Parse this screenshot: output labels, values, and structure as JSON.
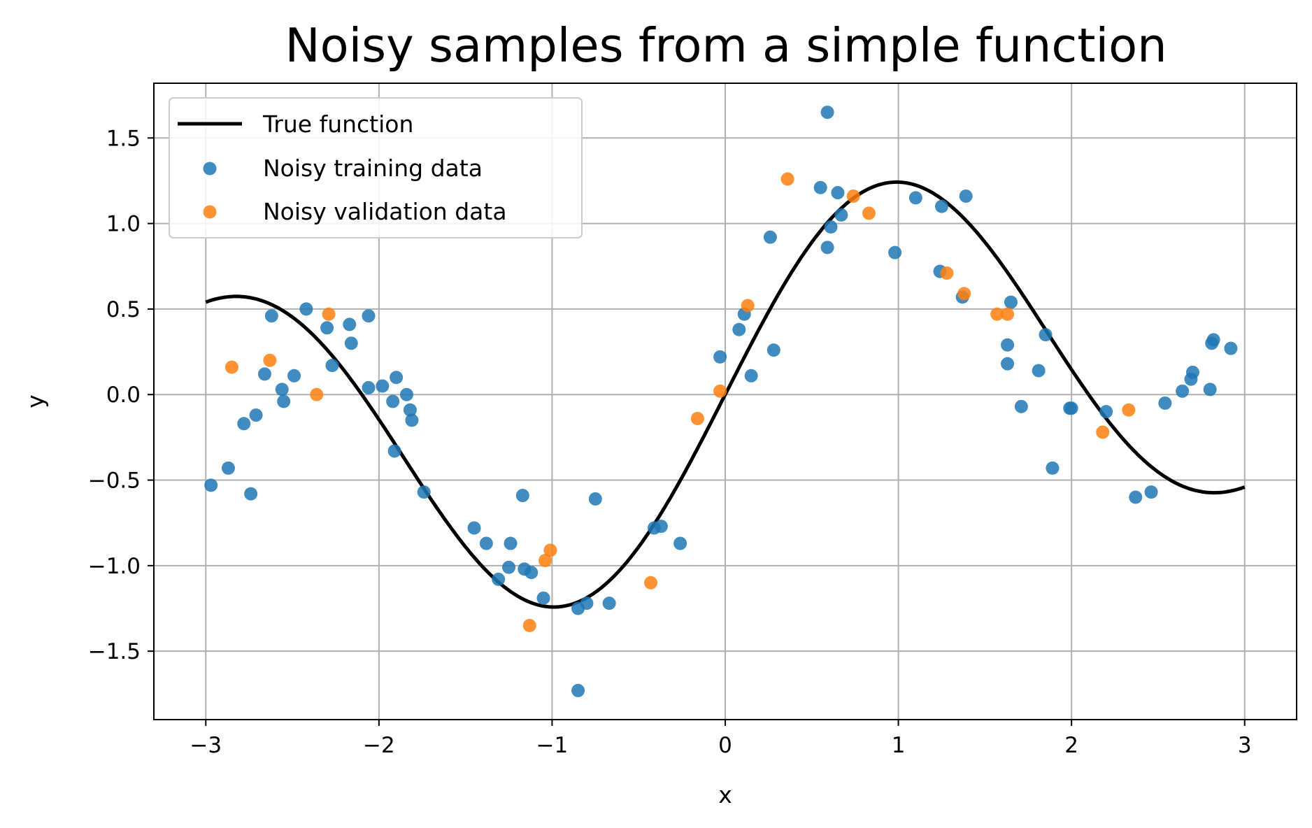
{
  "chart_data": {
    "type": "scatter",
    "title": "Noisy samples from a simple function",
    "xlabel": "x",
    "ylabel": "y",
    "xlim": [
      -3.3,
      3.3
    ],
    "ylim": [
      -1.9,
      1.82
    ],
    "grid": true,
    "legend_position": "top-left",
    "x_ticks": [
      -3,
      -2,
      -1,
      0,
      1,
      2,
      3
    ],
    "x_tick_labels": [
      "−3",
      "−2",
      "−1",
      "0",
      "1",
      "2",
      "3"
    ],
    "y_ticks": [
      -1.5,
      -1.0,
      -0.5,
      0.0,
      0.5,
      1.0,
      1.5
    ],
    "y_tick_labels": [
      "−1.5",
      "−1.0",
      "−0.5",
      "0.0",
      "0.5",
      "1.0",
      "1.5"
    ],
    "line": {
      "name": "True function",
      "color": "#000000",
      "x_range": [
        -3,
        3
      ],
      "formula": "sin(x)*1.25 approx"
    },
    "series": [
      {
        "name": "Noisy training data",
        "color": "#1f77b4",
        "points": [
          [
            -2.97,
            -0.53
          ],
          [
            -2.87,
            -0.43
          ],
          [
            -2.78,
            -0.17
          ],
          [
            -2.74,
            -0.58
          ],
          [
            -2.71,
            -0.12
          ],
          [
            -2.66,
            0.12
          ],
          [
            -2.62,
            0.46
          ],
          [
            -2.56,
            0.03
          ],
          [
            -2.55,
            -0.04
          ],
          [
            -2.49,
            0.11
          ],
          [
            -2.42,
            0.5
          ],
          [
            -2.3,
            0.39
          ],
          [
            -2.27,
            0.17
          ],
          [
            -2.17,
            0.41
          ],
          [
            -2.16,
            0.3
          ],
          [
            -2.06,
            0.46
          ],
          [
            -2.06,
            0.04
          ],
          [
            -1.98,
            0.05
          ],
          [
            -1.92,
            -0.04
          ],
          [
            -1.9,
            0.1
          ],
          [
            -1.91,
            -0.33
          ],
          [
            -1.84,
            0.0
          ],
          [
            -1.82,
            -0.09
          ],
          [
            -1.81,
            -0.15
          ],
          [
            -1.74,
            -0.57
          ],
          [
            -1.45,
            -0.78
          ],
          [
            -1.38,
            -0.87
          ],
          [
            -1.31,
            -1.08
          ],
          [
            -1.25,
            -1.01
          ],
          [
            -1.24,
            -0.87
          ],
          [
            -1.17,
            -0.59
          ],
          [
            -1.16,
            -1.02
          ],
          [
            -1.12,
            -1.04
          ],
          [
            -1.05,
            -1.19
          ],
          [
            -0.85,
            -1.73
          ],
          [
            -0.85,
            -1.25
          ],
          [
            -0.8,
            -1.22
          ],
          [
            -0.75,
            -0.61
          ],
          [
            -0.67,
            -1.22
          ],
          [
            -0.41,
            -0.78
          ],
          [
            -0.37,
            -0.77
          ],
          [
            -0.26,
            -0.87
          ],
          [
            -0.03,
            0.22
          ],
          [
            0.08,
            0.38
          ],
          [
            0.11,
            0.47
          ],
          [
            0.15,
            0.11
          ],
          [
            0.26,
            0.92
          ],
          [
            0.28,
            0.26
          ],
          [
            0.55,
            1.21
          ],
          [
            0.59,
            1.65
          ],
          [
            0.59,
            0.86
          ],
          [
            0.61,
            0.98
          ],
          [
            0.65,
            1.18
          ],
          [
            0.67,
            1.05
          ],
          [
            0.98,
            0.83
          ],
          [
            1.1,
            1.15
          ],
          [
            1.24,
            0.72
          ],
          [
            1.25,
            1.1
          ],
          [
            1.37,
            0.57
          ],
          [
            1.39,
            1.16
          ],
          [
            1.63,
            0.29
          ],
          [
            1.63,
            0.18
          ],
          [
            1.65,
            0.54
          ],
          [
            1.71,
            -0.07
          ],
          [
            1.81,
            0.14
          ],
          [
            1.85,
            0.35
          ],
          [
            1.89,
            -0.43
          ],
          [
            1.99,
            -0.08
          ],
          [
            2.0,
            -0.08
          ],
          [
            2.2,
            -0.1
          ],
          [
            2.37,
            -0.6
          ],
          [
            2.46,
            -0.57
          ],
          [
            2.54,
            -0.05
          ],
          [
            2.64,
            0.02
          ],
          [
            2.69,
            0.09
          ],
          [
            2.7,
            0.13
          ],
          [
            2.8,
            0.03
          ],
          [
            2.81,
            0.3
          ],
          [
            2.82,
            0.32
          ],
          [
            2.92,
            0.27
          ]
        ]
      },
      {
        "name": "Noisy validation data",
        "color": "#ff7f0e",
        "points": [
          [
            -2.85,
            0.16
          ],
          [
            -2.63,
            0.2
          ],
          [
            -2.36,
            0.0
          ],
          [
            -2.29,
            0.47
          ],
          [
            -1.13,
            -1.35
          ],
          [
            -1.04,
            -0.97
          ],
          [
            -1.01,
            -0.91
          ],
          [
            -0.43,
            -1.1
          ],
          [
            -0.16,
            -0.14
          ],
          [
            -0.03,
            0.02
          ],
          [
            0.13,
            0.52
          ],
          [
            0.36,
            1.26
          ],
          [
            0.74,
            1.16
          ],
          [
            0.83,
            1.06
          ],
          [
            1.28,
            0.71
          ],
          [
            1.38,
            0.59
          ],
          [
            1.57,
            0.47
          ],
          [
            1.63,
            0.47
          ],
          [
            2.18,
            -0.22
          ],
          [
            2.33,
            -0.09
          ]
        ]
      }
    ]
  }
}
